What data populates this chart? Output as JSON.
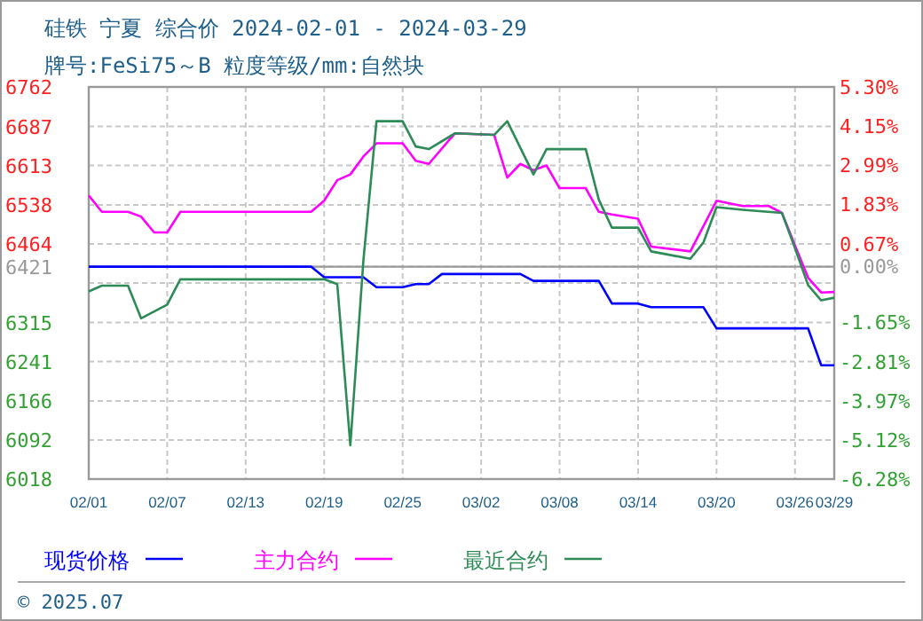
{
  "chart_data": {
    "type": "line",
    "title": "硅铁 宁夏 综合价 2024-02-01 - 2024-03-29",
    "subtitle": "牌号:FeSi75～B 粒度等级/mm:自然块",
    "annotations": [
      "© 2025.07"
    ],
    "xlim": [
      "2024-02-01",
      "2024-03-29"
    ],
    "xticks": [
      {
        "value": "2024-02-01",
        "label": "02/01"
      },
      {
        "value": "2024-02-07",
        "label": "02/07"
      },
      {
        "value": "2024-02-13",
        "label": "02/13"
      },
      {
        "value": "2024-02-19",
        "label": "02/19"
      },
      {
        "value": "2024-02-25",
        "label": "02/25"
      },
      {
        "value": "2024-03-02",
        "label": "03/02"
      },
      {
        "value": "2024-03-08",
        "label": "03/08"
      },
      {
        "value": "2024-03-14",
        "label": "03/14"
      },
      {
        "value": "2024-03-20",
        "label": "03/20"
      },
      {
        "value": "2024-03-26",
        "label": "03/26"
      },
      {
        "value": "2024-03-29",
        "label": "03/29"
      }
    ],
    "ylim": [
      6018,
      6762
    ],
    "yticks": [
      6762,
      6687,
      6613,
      6538,
      6464,
      6421,
      {
        "value": 6390,
        "label": null
      },
      6315,
      6241,
      6166,
      6092,
      6018
    ],
    "y2lim": [
      -6.28,
      5.3
    ],
    "y2ticks": [
      {
        "value": 5.3,
        "label": "5.30%"
      },
      {
        "value": 4.15,
        "label": "4.15%"
      },
      {
        "value": 2.99,
        "label": "2.99%"
      },
      {
        "value": 1.83,
        "label": "1.83%"
      },
      {
        "value": 0.67,
        "label": "0.67%"
      },
      {
        "value": 0,
        "label": "0.00%"
      },
      {
        "value": -1.65,
        "label": "-1.65%"
      },
      {
        "value": -2.81,
        "label": "-2.81%"
      },
      {
        "value": -3.97,
        "label": "-3.97%"
      },
      {
        "value": -5.12,
        "label": "-5.12%"
      },
      {
        "value": -6.28,
        "label": "-6.28%"
      }
    ],
    "ref_lines": [
      {
        "axis": "y",
        "value": 6421,
        "color": "#999999"
      }
    ],
    "grid": true,
    "legend": "bottom",
    "series": [
      {
        "name": "现货价格",
        "color": "#0000ff",
        "x": [
          "2024-02-01",
          "2024-02-18",
          "2024-02-19",
          "2024-02-22",
          "2024-02-23",
          "2024-02-25",
          "2024-02-26",
          "2024-02-27",
          "2024-02-28",
          "2024-03-05",
          "2024-03-06",
          "2024-03-11",
          "2024-03-12",
          "2024-03-14",
          "2024-03-15",
          "2024-03-19",
          "2024-03-20",
          "2024-03-27",
          "2024-03-28",
          "2024-03-29"
        ],
        "values": [
          6421,
          6421,
          6401,
          6401,
          6382,
          6382,
          6388,
          6388,
          6407,
          6407,
          6394,
          6394,
          6351,
          6351,
          6344,
          6344,
          6304,
          6304,
          6234,
          6234
        ]
      },
      {
        "name": "主力合约",
        "color": "#ff00ff",
        "x": [
          "2024-02-01",
          "2024-02-02",
          "2024-02-04",
          "2024-02-05",
          "2024-02-06",
          "2024-02-07",
          "2024-02-08",
          "2024-02-18",
          "2024-02-19",
          "2024-02-20",
          "2024-02-21",
          "2024-02-22",
          "2024-02-23",
          "2024-02-25",
          "2024-02-26",
          "2024-02-27",
          "2024-02-29",
          "2024-03-03",
          "2024-03-04",
          "2024-03-05",
          "2024-03-06",
          "2024-03-07",
          "2024-03-08",
          "2024-03-10",
          "2024-03-11",
          "2024-03-12",
          "2024-03-14",
          "2024-03-15",
          "2024-03-18",
          "2024-03-20",
          "2024-03-22",
          "2024-03-24",
          "2024-03-25",
          "2024-03-26",
          "2024-03-27",
          "2024-03-28",
          "2024-03-29"
        ],
        "values": [
          6556,
          6525,
          6525,
          6516,
          6486,
          6486,
          6525,
          6525,
          6546,
          6585,
          6596,
          6630,
          6655,
          6655,
          6622,
          6616,
          6674,
          6671,
          6590,
          6616,
          6604,
          6613,
          6570,
          6570,
          6525,
          6520,
          6512,
          6459,
          6450,
          6546,
          6536,
          6536,
          6523,
          6461,
          6400,
          6372,
          6373
        ]
      },
      {
        "name": "最近合约",
        "color": "#2e8b57",
        "x": [
          "2024-02-01",
          "2024-02-02",
          "2024-02-04",
          "2024-02-05",
          "2024-02-07",
          "2024-02-08",
          "2024-02-19",
          "2024-02-20",
          "2024-02-21",
          "2024-02-22",
          "2024-02-23",
          "2024-02-25",
          "2024-02-26",
          "2024-02-27",
          "2024-02-29",
          "2024-03-03",
          "2024-03-04",
          "2024-03-06",
          "2024-03-07",
          "2024-03-10",
          "2024-03-11",
          "2024-03-12",
          "2024-03-14",
          "2024-03-15",
          "2024-03-18",
          "2024-03-19",
          "2024-03-20",
          "2024-03-22",
          "2024-03-25",
          "2024-03-26",
          "2024-03-27",
          "2024-03-28",
          "2024-03-29"
        ],
        "values": [
          6374,
          6385,
          6385,
          6323,
          6349,
          6397,
          6397,
          6388,
          6082,
          6433,
          6697,
          6697,
          6649,
          6644,
          6674,
          6671,
          6697,
          6596,
          6644,
          6644,
          6548,
          6495,
          6495,
          6450,
          6436,
          6467,
          6534,
          6529,
          6523,
          6456,
          6386,
          6357,
          6362
        ]
      }
    ]
  }
}
